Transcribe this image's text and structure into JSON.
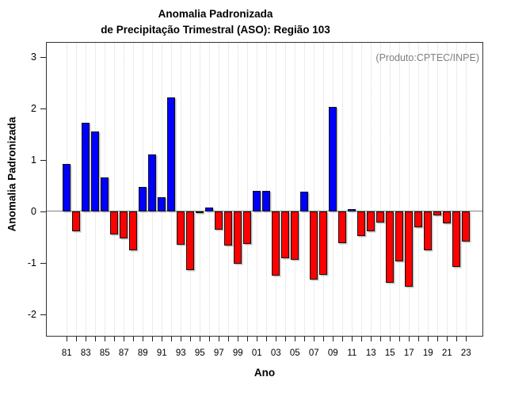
{
  "title": {
    "line1": "Anomalia Padronizada",
    "line2": "de Precipitação Trimestral (ASO): Região 103"
  },
  "annotation": "(Produto:CPTEC/INPE)",
  "axes": {
    "x_title": "Ano",
    "y_title": "Anomalia Padronizada"
  },
  "chart_data": {
    "type": "bar",
    "title": "Anomalia Padronizada de Precipitação Trimestral (ASO): Região 103",
    "xlabel": "Ano",
    "ylabel": "Anomalia Padronizada",
    "x": [
      1981,
      1982,
      1983,
      1984,
      1985,
      1986,
      1987,
      1988,
      1989,
      1990,
      1991,
      1992,
      1993,
      1994,
      1995,
      1996,
      1997,
      1998,
      1999,
      2000,
      2001,
      2002,
      2003,
      2004,
      2005,
      2006,
      2007,
      2008,
      2009,
      2010,
      2011,
      2012,
      2013,
      2014,
      2015,
      2016,
      2017,
      2018,
      2019,
      2020,
      2021,
      2022,
      2023
    ],
    "values": [
      0.92,
      -0.38,
      1.73,
      1.55,
      0.66,
      -0.45,
      -0.52,
      -0.76,
      0.48,
      1.11,
      0.27,
      2.21,
      -0.65,
      -1.14,
      -0.02,
      0.08,
      -0.36,
      -0.66,
      -1.02,
      -0.63,
      0.4,
      0.4,
      -1.24,
      -0.91,
      -0.94,
      0.39,
      -1.33,
      -1.23,
      2.03,
      -0.62,
      0.04,
      -0.48,
      -0.38,
      -0.22,
      -1.39,
      -0.97,
      -1.46,
      -0.31,
      -0.75,
      -0.08,
      -0.23,
      -1.08,
      -0.58
    ],
    "y_ticks": [
      3,
      2,
      1,
      0,
      -1,
      -2
    ],
    "x_tick_labels": [
      "81",
      "83",
      "85",
      "87",
      "89",
      "91",
      "93",
      "95",
      "97",
      "99",
      "01",
      "03",
      "05",
      "07",
      "09",
      "11",
      "13",
      "15",
      "17",
      "19",
      "21",
      "23"
    ],
    "ylim": [
      -2.45,
      3.3
    ],
    "grid": "vertical-dotted",
    "legend": null,
    "colors": {
      "positive": "#0000ff",
      "negative": "#ff0000"
    }
  }
}
